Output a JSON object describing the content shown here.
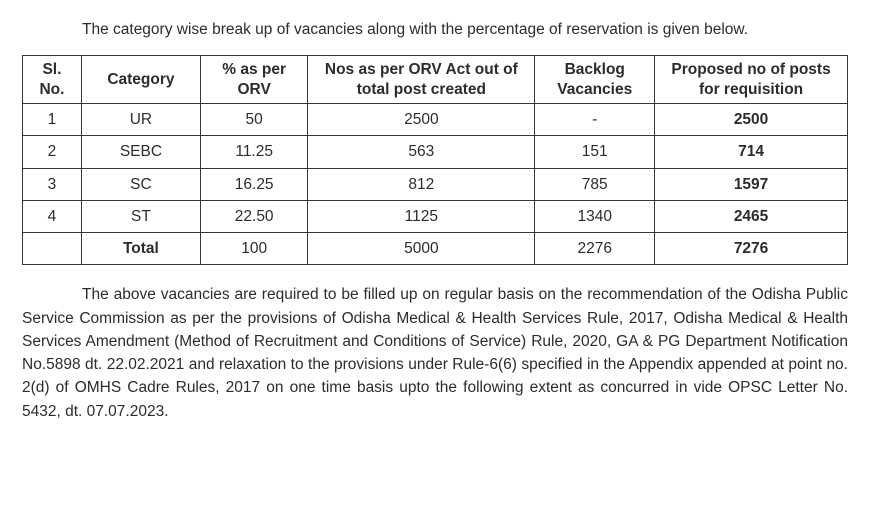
{
  "intro_text": "The category wise break up of vacancies along with the percentage of reservation is given below.",
  "table": {
    "headers": {
      "sl": "Sl. No.",
      "category": "Category",
      "pct": "% as per ORV",
      "nos": "Nos as per ORV Act out of total post created",
      "backlog": "Backlog Vacancies",
      "proposed": "Proposed no of posts for requisition"
    },
    "rows": [
      {
        "sl": "1",
        "category": "UR",
        "pct": "50",
        "nos": "2500",
        "backlog": "-",
        "proposed": "2500"
      },
      {
        "sl": "2",
        "category": "SEBC",
        "pct": "11.25",
        "nos": "563",
        "backlog": "151",
        "proposed": "714"
      },
      {
        "sl": "3",
        "category": "SC",
        "pct": "16.25",
        "nos": "812",
        "backlog": "785",
        "proposed": "1597"
      },
      {
        "sl": "4",
        "category": "ST",
        "pct": "22.50",
        "nos": "1125",
        "backlog": "1340",
        "proposed": "2465"
      }
    ],
    "total": {
      "sl": "",
      "category": "Total",
      "pct": "100",
      "nos": "5000",
      "backlog": "2276",
      "proposed": "7276"
    }
  },
  "para2_text": "The above vacancies are required to be filled up on regular basis on the recommendation of the Odisha Public Service Commission as per the provisions of Odisha Medical & Health Services Rule, 2017, Odisha Medical & Health Services Amendment (Method of Recruitment and Conditions of Service) Rule, 2020, GA & PG Department Notification No.5898 dt. 22.02.2021 and relaxation to the provisions under Rule-6(6) specified in the Appendix appended at point no. 2(d) of OMHS Cadre Rules, 2017 on one time basis upto the following extent as concurred in vide OPSC Letter No. 5432, dt. 07.07.2023."
}
